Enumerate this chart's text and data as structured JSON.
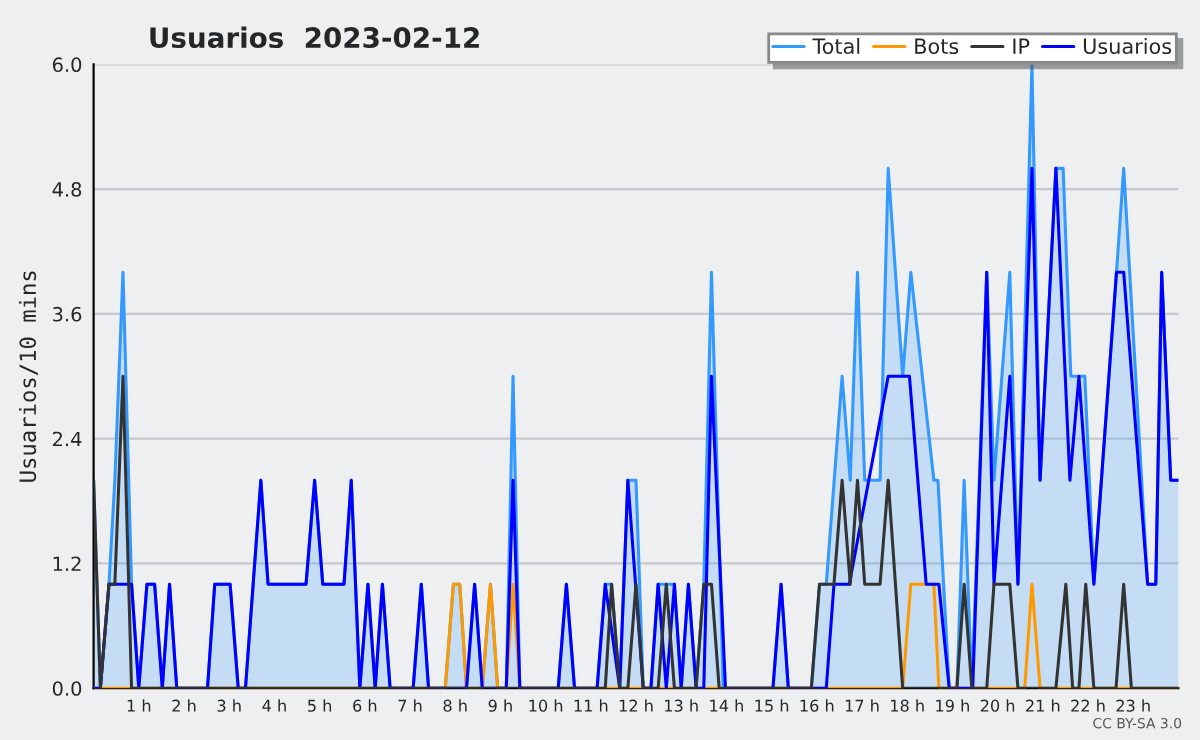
{
  "chart_data": {
    "type": "line",
    "title": "Usuarios  2023-02-12",
    "ylabel": "Usuarios/10 mins",
    "xlim": [
      0,
      24
    ],
    "xticks": [
      {
        "value": 1,
        "label": "1 h"
      },
      {
        "value": 2,
        "label": "2 h"
      },
      {
        "value": 3,
        "label": "3 h"
      },
      {
        "value": 4,
        "label": "4 h"
      },
      {
        "value": 5,
        "label": "5 h"
      },
      {
        "value": 6,
        "label": "6 h"
      },
      {
        "value": 7,
        "label": "7 h"
      },
      {
        "value": 8,
        "label": "8 h"
      },
      {
        "value": 9,
        "label": "9 h"
      },
      {
        "value": 10,
        "label": "10 h"
      },
      {
        "value": 11,
        "label": "11 h"
      },
      {
        "value": 12,
        "label": "12 h"
      },
      {
        "value": 13,
        "label": "13 h"
      },
      {
        "value": 14,
        "label": "14 h"
      },
      {
        "value": 15,
        "label": "15 h"
      },
      {
        "value": 16,
        "label": "16 h"
      },
      {
        "value": 17,
        "label": "17 h"
      },
      {
        "value": 18,
        "label": "18 h"
      },
      {
        "value": 19,
        "label": "19 h"
      },
      {
        "value": 20,
        "label": "20 h"
      },
      {
        "value": 21,
        "label": "21 h"
      },
      {
        "value": 22,
        "label": "22 h"
      },
      {
        "value": 23,
        "label": "23 h"
      }
    ],
    "ylim": [
      0,
      6
    ],
    "yticks": [
      {
        "value": 0,
        "label": "0.0"
      },
      {
        "value": 1.2,
        "label": "1.2"
      },
      {
        "value": 2.4,
        "label": "2.4"
      },
      {
        "value": 3.6,
        "label": "3.6"
      },
      {
        "value": 4.8,
        "label": "4.8"
      },
      {
        "value": 6,
        "label": "6.0"
      }
    ],
    "grid": "y",
    "legend": "top right",
    "marker": "none",
    "line_style": "solid",
    "annotations": [
      "CC BY-SA 3.0"
    ],
    "series": [
      {
        "name": "Total",
        "type": "area",
        "color": "#3399ff",
        "x": [
          0,
          0.15,
          0.34,
          0.47,
          0.65,
          0.84,
          1.0,
          1.18,
          1.35,
          1.52,
          1.68,
          1.84,
          2.52,
          2.68,
          3.02,
          3.2,
          3.36,
          3.7,
          3.86,
          4.7,
          4.89,
          5.07,
          5.54,
          5.7,
          5.89,
          6.07,
          6.23,
          6.39,
          6.56,
          7.07,
          7.25,
          7.41,
          7.78,
          7.96,
          8.1,
          8.25,
          8.43,
          8.6,
          8.78,
          8.94,
          9.13,
          9.28,
          9.43,
          10.28,
          10.46,
          10.64,
          11.14,
          11.32,
          11.46,
          11.64,
          11.82,
          12.0,
          12.16,
          12.33,
          12.49,
          12.85,
          13.0,
          13.16,
          13.33,
          13.5,
          13.67,
          13.93,
          15.03,
          15.21,
          15.37,
          15.88,
          16.06,
          16.21,
          16.56,
          16.74,
          16.9,
          17.06,
          17.4,
          17.58,
          17.9,
          18.08,
          18.59,
          18.68,
          18.93,
          19.1,
          19.26,
          19.43,
          19.76,
          19.92,
          20.27,
          20.45,
          20.76,
          20.94,
          21.29,
          21.45,
          21.62,
          21.93,
          22.13,
          22.63,
          22.79,
          23.32,
          23.5,
          23.63,
          23.83,
          24
        ],
        "values": [
          2,
          0,
          1,
          2,
          4,
          1,
          0,
          1,
          1,
          0,
          1,
          0,
          0,
          1,
          1,
          0,
          0,
          2,
          1,
          1,
          2,
          1,
          1,
          2,
          0,
          1,
          0,
          1,
          0,
          0,
          1,
          0,
          0,
          1,
          1,
          0,
          1,
          0,
          1,
          0,
          0,
          3,
          0,
          0,
          1,
          0,
          0,
          1,
          1,
          0,
          2,
          2,
          0,
          0,
          1,
          1,
          0,
          1,
          0,
          1,
          4,
          0,
          0,
          1,
          0,
          0,
          1,
          1,
          3,
          2,
          4,
          2,
          2,
          5,
          3,
          4,
          2,
          2,
          0,
          0,
          2,
          0,
          4,
          2,
          4,
          1,
          6,
          2,
          5,
          5,
          3,
          3,
          1,
          4,
          5,
          1,
          1,
          4,
          2,
          2
        ]
      },
      {
        "name": "Bots",
        "color": "#ff9900",
        "x": [
          0,
          7.78,
          7.96,
          8.1,
          8.25,
          8.6,
          8.78,
          8.94,
          9.13,
          9.28,
          9.43,
          17.9,
          18.08,
          18.59,
          18.7,
          20.6,
          20.76,
          20.94,
          24
        ],
        "values": [
          0,
          0,
          1,
          1,
          0,
          0,
          1,
          0,
          0,
          1,
          0,
          0,
          1,
          1,
          0,
          0,
          1,
          0,
          0
        ]
      },
      {
        "name": "IP",
        "color": "#333333",
        "x": [
          0,
          0.15,
          0.34,
          0.47,
          0.65,
          0.84,
          11.32,
          11.46,
          11.64,
          11.82,
          12.0,
          12.16,
          12.49,
          12.67,
          12.85,
          13.33,
          13.5,
          13.67,
          13.84,
          15.88,
          16.06,
          16.38,
          16.56,
          16.74,
          16.9,
          17.06,
          17.4,
          17.58,
          17.9,
          19.1,
          19.26,
          19.43,
          19.76,
          19.92,
          20.27,
          20.45,
          21.29,
          21.51,
          21.66,
          21.8,
          21.95,
          22.13,
          22.62,
          22.79,
          22.96,
          24
        ],
        "values": [
          2,
          0,
          1,
          1,
          3,
          0,
          0,
          1,
          0,
          0,
          1,
          0,
          0,
          1,
          0,
          0,
          1,
          1,
          0,
          0,
          1,
          1,
          2,
          1,
          2,
          1,
          1,
          2,
          0,
          0,
          1,
          0,
          0,
          1,
          1,
          0,
          0,
          1,
          0,
          0,
          1,
          0,
          0,
          1,
          0,
          0
        ]
      },
      {
        "name": "Usuarios",
        "color": "#0000ff",
        "x": [
          0,
          0.15,
          0.34,
          0.84,
          1.0,
          1.18,
          1.35,
          1.52,
          1.68,
          1.84,
          2.52,
          2.68,
          3.02,
          3.2,
          3.36,
          3.7,
          3.86,
          4.7,
          4.89,
          5.07,
          5.54,
          5.7,
          5.89,
          6.07,
          6.23,
          6.39,
          6.56,
          7.07,
          7.25,
          7.41,
          8.25,
          8.43,
          8.6,
          9.13,
          9.28,
          9.43,
          10.28,
          10.46,
          10.64,
          11.14,
          11.32,
          11.64,
          11.82,
          12.16,
          12.33,
          12.49,
          12.67,
          12.85,
          13.0,
          13.16,
          13.33,
          13.5,
          13.67,
          13.98,
          15.03,
          15.21,
          15.37,
          16.21,
          16.38,
          16.72,
          17.58,
          18.05,
          18.42,
          18.7,
          18.93,
          19.45,
          19.76,
          19.92,
          20.27,
          20.45,
          20.76,
          20.94,
          21.29,
          21.6,
          21.8,
          22.13,
          22.63,
          22.79,
          23.32,
          23.5,
          23.63,
          23.83,
          24
        ],
        "values": [
          0,
          0,
          1,
          1,
          0,
          1,
          1,
          0,
          1,
          0,
          0,
          1,
          1,
          0,
          0,
          2,
          1,
          1,
          2,
          1,
          1,
          2,
          0,
          1,
          0,
          1,
          0,
          0,
          1,
          0,
          0,
          1,
          0,
          0,
          2,
          0,
          0,
          1,
          0,
          0,
          1,
          0,
          2,
          0,
          0,
          1,
          0,
          1,
          0,
          1,
          0,
          0,
          3,
          0,
          0,
          1,
          0,
          0,
          1,
          1,
          3,
          3,
          1,
          1,
          0,
          0,
          4,
          1,
          3,
          1,
          5,
          2,
          5,
          2,
          3,
          1,
          4,
          4,
          1,
          1,
          4,
          2,
          2
        ]
      }
    ]
  }
}
